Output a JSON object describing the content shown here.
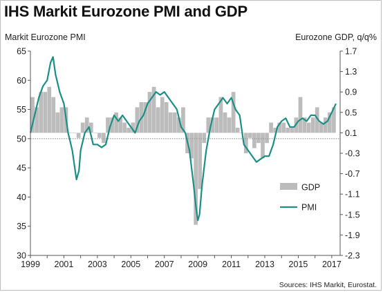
{
  "chart_data": {
    "type": "bar+line",
    "title": "IHS Markit Eurozone PMI and GDP",
    "left_axis": {
      "label": "Markit Eurozone PMI",
      "ylim": [
        30,
        65
      ],
      "ticks": [
        30,
        35,
        40,
        45,
        50,
        55,
        60,
        65
      ],
      "tick_labels": [
        "30",
        "35",
        "40",
        "45",
        "50",
        "55",
        "60",
        "65"
      ]
    },
    "right_axis": {
      "label": "Eurozone GDP, q/q%",
      "ylim": [
        -2.3,
        1.7
      ],
      "ticks": [
        1.7,
        1.3,
        0.9,
        0.5,
        0.1,
        -0.3,
        -0.7,
        -1.1,
        -1.5,
        -1.9,
        -2.3
      ],
      "tick_labels": [
        "1.7",
        "1.3",
        "0.9",
        "0.5",
        "0.1",
        "-0.3",
        "-0.7",
        "-1.1",
        "-1.5",
        "-1.9",
        "-2.3"
      ]
    },
    "x_axis": {
      "range": [
        1999,
        2017.5
      ],
      "ticks": [
        1999,
        2001,
        2003,
        2005,
        2007,
        2009,
        2011,
        2013,
        2015,
        2017
      ],
      "tick_labels": [
        "1999",
        "2001",
        "2003",
        "2005",
        "2007",
        "2009",
        "2011",
        "2013",
        "2015",
        "2017"
      ]
    },
    "reference_line": 50,
    "legend": {
      "placement": "lower-right",
      "items": [
        {
          "name": "GDP",
          "kind": "bar"
        },
        {
          "name": "PMI",
          "kind": "line"
        }
      ]
    },
    "series": [
      {
        "name": "GDP",
        "kind": "bar",
        "axis": "right",
        "color": "#bcbcbc",
        "x": [
          1999.125,
          1999.375,
          1999.625,
          1999.875,
          2000.125,
          2000.375,
          2000.625,
          2000.875,
          2001.125,
          2001.375,
          2001.625,
          2001.875,
          2002.125,
          2002.375,
          2002.625,
          2002.875,
          2003.125,
          2003.375,
          2003.625,
          2003.875,
          2004.125,
          2004.375,
          2004.625,
          2004.875,
          2005.125,
          2005.375,
          2005.625,
          2005.875,
          2006.125,
          2006.375,
          2006.625,
          2006.875,
          2007.125,
          2007.375,
          2007.625,
          2007.875,
          2008.125,
          2008.375,
          2008.625,
          2008.875,
          2009.125,
          2009.375,
          2009.625,
          2009.875,
          2010.125,
          2010.375,
          2010.625,
          2010.875,
          2011.125,
          2011.375,
          2011.625,
          2011.875,
          2012.125,
          2012.375,
          2012.625,
          2012.875,
          2013.125,
          2013.375,
          2013.625,
          2013.875,
          2014.125,
          2014.375,
          2014.625,
          2014.875,
          2015.125,
          2015.375,
          2015.625,
          2015.875,
          2016.125,
          2016.375,
          2016.625,
          2016.875,
          2017.125
        ],
        "values": [
          0.8,
          0.6,
          0.9,
          0.9,
          1.0,
          0.8,
          0.5,
          0.6,
          0.6,
          0.1,
          0.1,
          0.0,
          0.3,
          0.4,
          0.3,
          0.1,
          0.0,
          -0.1,
          0.4,
          0.4,
          0.5,
          0.4,
          0.3,
          0.2,
          0.3,
          0.6,
          0.7,
          0.7,
          0.9,
          1.0,
          0.6,
          0.8,
          0.7,
          0.5,
          0.5,
          0.4,
          0.6,
          -0.3,
          -0.4,
          -1.7,
          -1.0,
          -0.1,
          0.4,
          0.4,
          0.4,
          0.8,
          0.5,
          0.4,
          0.9,
          0.2,
          0.1,
          -0.3,
          0.0,
          -0.2,
          -0.1,
          -0.4,
          -0.1,
          0.3,
          0.2,
          0.3,
          0.3,
          0.2,
          0.2,
          0.4,
          0.8,
          0.4,
          0.3,
          0.4,
          0.6,
          0.3,
          0.4,
          0.5,
          0.6
        ]
      },
      {
        "name": "PMI",
        "kind": "line",
        "axis": "left",
        "color": "#1b8f86",
        "x": [
          1999.0,
          1999.25,
          1999.5,
          1999.75,
          2000.0,
          2000.2,
          2000.35,
          2000.5,
          2000.75,
          2001.0,
          2001.25,
          2001.5,
          2001.75,
          2001.9,
          2002.0,
          2002.25,
          2002.5,
          2002.75,
          2003.0,
          2003.25,
          2003.5,
          2003.75,
          2004.0,
          2004.25,
          2004.5,
          2004.75,
          2005.0,
          2005.25,
          2005.5,
          2005.75,
          2006.0,
          2006.25,
          2006.5,
          2006.75,
          2007.0,
          2007.25,
          2007.5,
          2007.75,
          2008.0,
          2008.25,
          2008.5,
          2008.75,
          2008.9,
          2009.0,
          2009.1,
          2009.25,
          2009.5,
          2009.75,
          2010.0,
          2010.25,
          2010.5,
          2010.75,
          2011.0,
          2011.25,
          2011.5,
          2011.75,
          2012.0,
          2012.25,
          2012.5,
          2012.75,
          2013.0,
          2013.25,
          2013.5,
          2013.75,
          2014.0,
          2014.25,
          2014.5,
          2014.75,
          2015.0,
          2015.25,
          2015.5,
          2015.75,
          2016.0,
          2016.25,
          2016.5,
          2016.75,
          2017.0,
          2017.25
        ],
        "values": [
          51,
          54,
          57,
          59,
          60,
          63,
          64,
          61,
          58,
          56,
          51,
          48,
          43,
          44.5,
          48,
          51,
          52,
          49,
          49,
          48.5,
          49,
          52,
          54,
          53,
          54,
          53,
          52,
          51,
          53,
          54,
          56,
          57,
          58,
          57.5,
          58,
          57,
          56,
          55,
          52,
          51,
          48,
          42,
          38,
          36,
          37,
          42,
          48,
          52,
          55,
          56,
          57,
          56,
          57,
          55,
          54,
          49,
          48,
          47,
          46,
          46.5,
          47,
          47,
          49,
          52,
          53,
          53.5,
          52,
          52,
          53,
          53.5,
          53,
          54,
          54,
          53,
          52.5,
          53,
          54.5,
          56
        ]
      }
    ]
  },
  "source_text": "Sources: IHS Markit, Eurostat."
}
